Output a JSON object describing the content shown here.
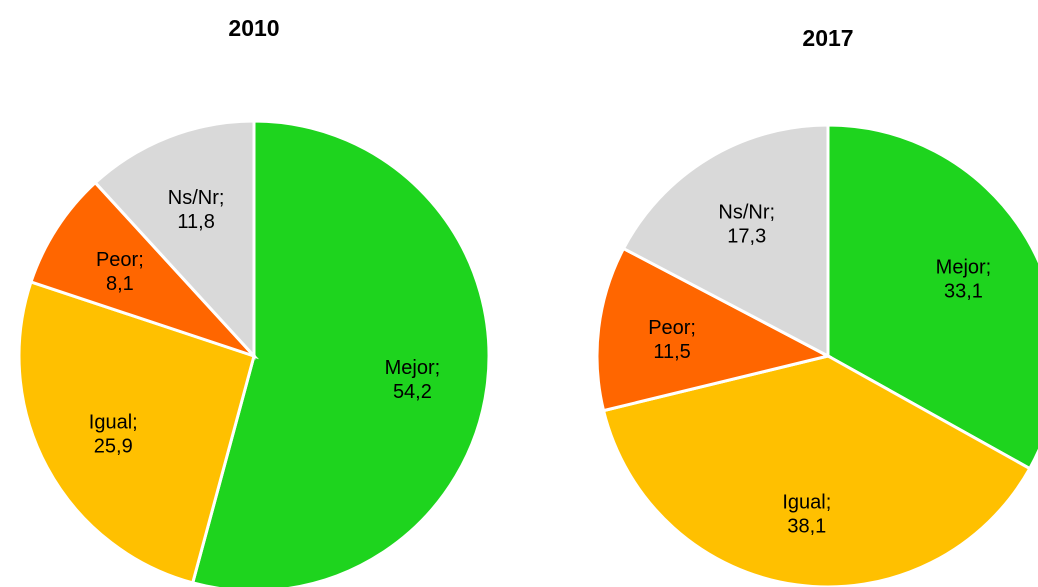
{
  "chart_data": [
    {
      "type": "pie",
      "title": "2010",
      "categories": [
        "Mejor;",
        "Igual;",
        "Peor;",
        "Ns/Nr;"
      ],
      "values": [
        54.2,
        25.9,
        8.1,
        11.8
      ],
      "value_labels": [
        "54,2",
        "25,9",
        "8,1",
        "11,8"
      ],
      "colors": [
        "#1ed41e",
        "#ffc000",
        "#ff6600",
        "#d9d9d9"
      ]
    },
    {
      "type": "pie",
      "title": "2017",
      "categories": [
        "Mejor;",
        "Igual;",
        "Peor;",
        "Ns/Nr;"
      ],
      "values": [
        33.1,
        38.1,
        11.5,
        17.3
      ],
      "value_labels": [
        "33,1",
        "38,1",
        "11,5",
        "17,3"
      ],
      "colors": [
        "#1ed41e",
        "#ffc000",
        "#ff6600",
        "#d9d9d9"
      ]
    }
  ]
}
